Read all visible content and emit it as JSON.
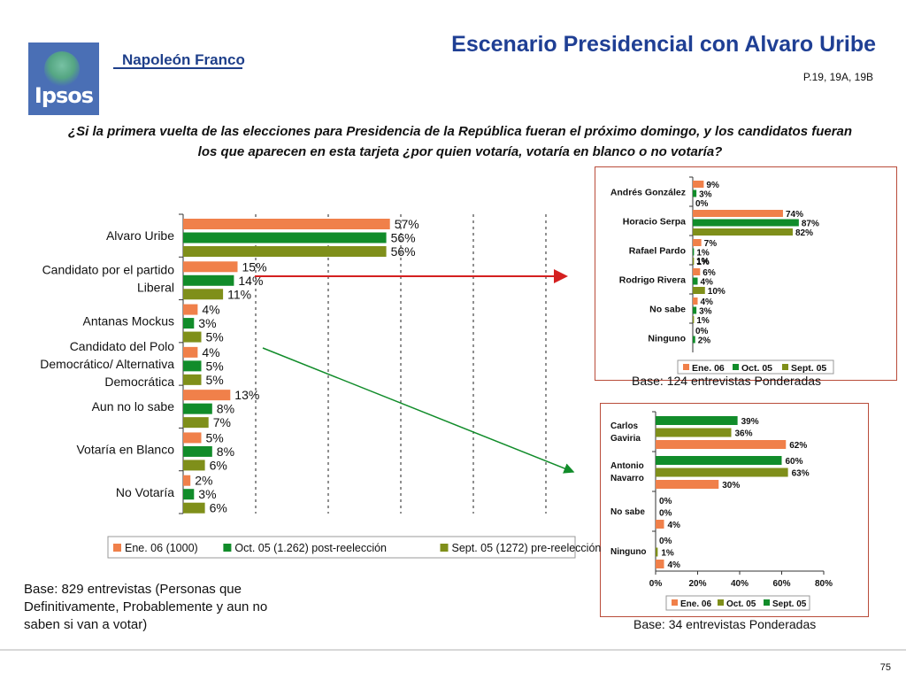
{
  "header": {
    "logo_text": "Ipsos",
    "brand": "Napoleón Franco",
    "title": "Escenario Presidencial con Alvaro Uribe",
    "reference": "P.19, 19A, 19B",
    "question": "¿Si la primera vuelta de las elecciones para Presidencia de la República  fueran el próximo domingo, y los candidatos fueran los que aparecen en esta tarjeta ¿por quien votaría, votaría en blanco o no votaría?"
  },
  "colors": {
    "title": "#1f3f94",
    "series_orange": "#f0804a",
    "series_green": "#118c2a",
    "series_olive": "#7f8f1a",
    "arrow": "#d42020",
    "box_border": "#b94c3a"
  },
  "footer": {
    "base_main": "Base: 829 entrevistas (Personas que Definitivamente, Probablemente y aun no saben si van a  votar)",
    "base_top": "Base: 124 entrevistas Ponderadas",
    "base_bottom": "Base: 34 entrevistas Ponderadas",
    "page_number": "75"
  },
  "chart_data": [
    {
      "type": "bar",
      "orientation": "horizontal",
      "categories": [
        "Alvaro Uribe",
        "Candidato por el partido Liberal",
        "Antanas Mockus",
        "Candidato del Polo Democrático/ Alternativa Democrática",
        "Aun no lo sabe",
        "Votaría en Blanco",
        "No Votaría"
      ],
      "series": [
        {
          "name": "Ene. 06 (1000)",
          "color": "#f0804a",
          "values": [
            57,
            15,
            4,
            4,
            13,
            5,
            2
          ]
        },
        {
          "name": "Oct. 05 (1.262) post-reelección",
          "color": "#118c2a",
          "values": [
            56,
            14,
            3,
            5,
            8,
            8,
            3
          ]
        },
        {
          "name": "Sept. 05 (1272) pre-reelección",
          "color": "#7f8f1a",
          "values": [
            56,
            11,
            5,
            5,
            7,
            6,
            6
          ]
        }
      ],
      "value_suffix": "%",
      "xlim": [
        0,
        100
      ],
      "grid": true,
      "legend": "bottom"
    },
    {
      "type": "bar",
      "orientation": "horizontal",
      "categories": [
        "Andrés González",
        "Horacio Serpa",
        "Rafael Pardo",
        "Rodrigo Rivera",
        "No sabe",
        "Ninguno"
      ],
      "series": [
        {
          "name": "Ene. 06",
          "color": "#f0804a",
          "values": [
            9,
            74,
            7,
            6,
            4,
            0
          ]
        },
        {
          "name": "Oct. 05",
          "color": "#118c2a",
          "values": [
            3,
            87,
            1,
            4,
            3,
            2
          ]
        },
        {
          "name": "Sept. 05",
          "color": "#7f8f1a",
          "values": [
            0,
            82,
            1,
            10,
            1,
            null
          ]
        }
      ],
      "extra_labels": [
        "1%"
      ],
      "value_suffix": "%",
      "xlim": [
        0,
        90
      ],
      "legend": "bottom"
    },
    {
      "type": "bar",
      "orientation": "horizontal",
      "categories": [
        "Carlos Gaviria",
        "Antonio Navarro",
        "No sabe",
        "Ninguno"
      ],
      "series": [
        {
          "name": "Sept. 05",
          "color": "#118c2a",
          "values": [
            39,
            60,
            0,
            0
          ]
        },
        {
          "name": "Oct. 05",
          "color": "#7f8f1a",
          "values": [
            36,
            63,
            0,
            1
          ]
        },
        {
          "name": "Ene. 06",
          "color": "#f0804a",
          "values": [
            62,
            30,
            4,
            4
          ]
        }
      ],
      "legend_order": [
        "Ene. 06",
        "Oct. 05",
        "Sept. 05"
      ],
      "x_ticks": [
        "0%",
        "20%",
        "40%",
        "60%",
        "80%"
      ],
      "value_suffix": "%",
      "xlim": [
        0,
        80
      ],
      "legend": "bottom"
    }
  ]
}
